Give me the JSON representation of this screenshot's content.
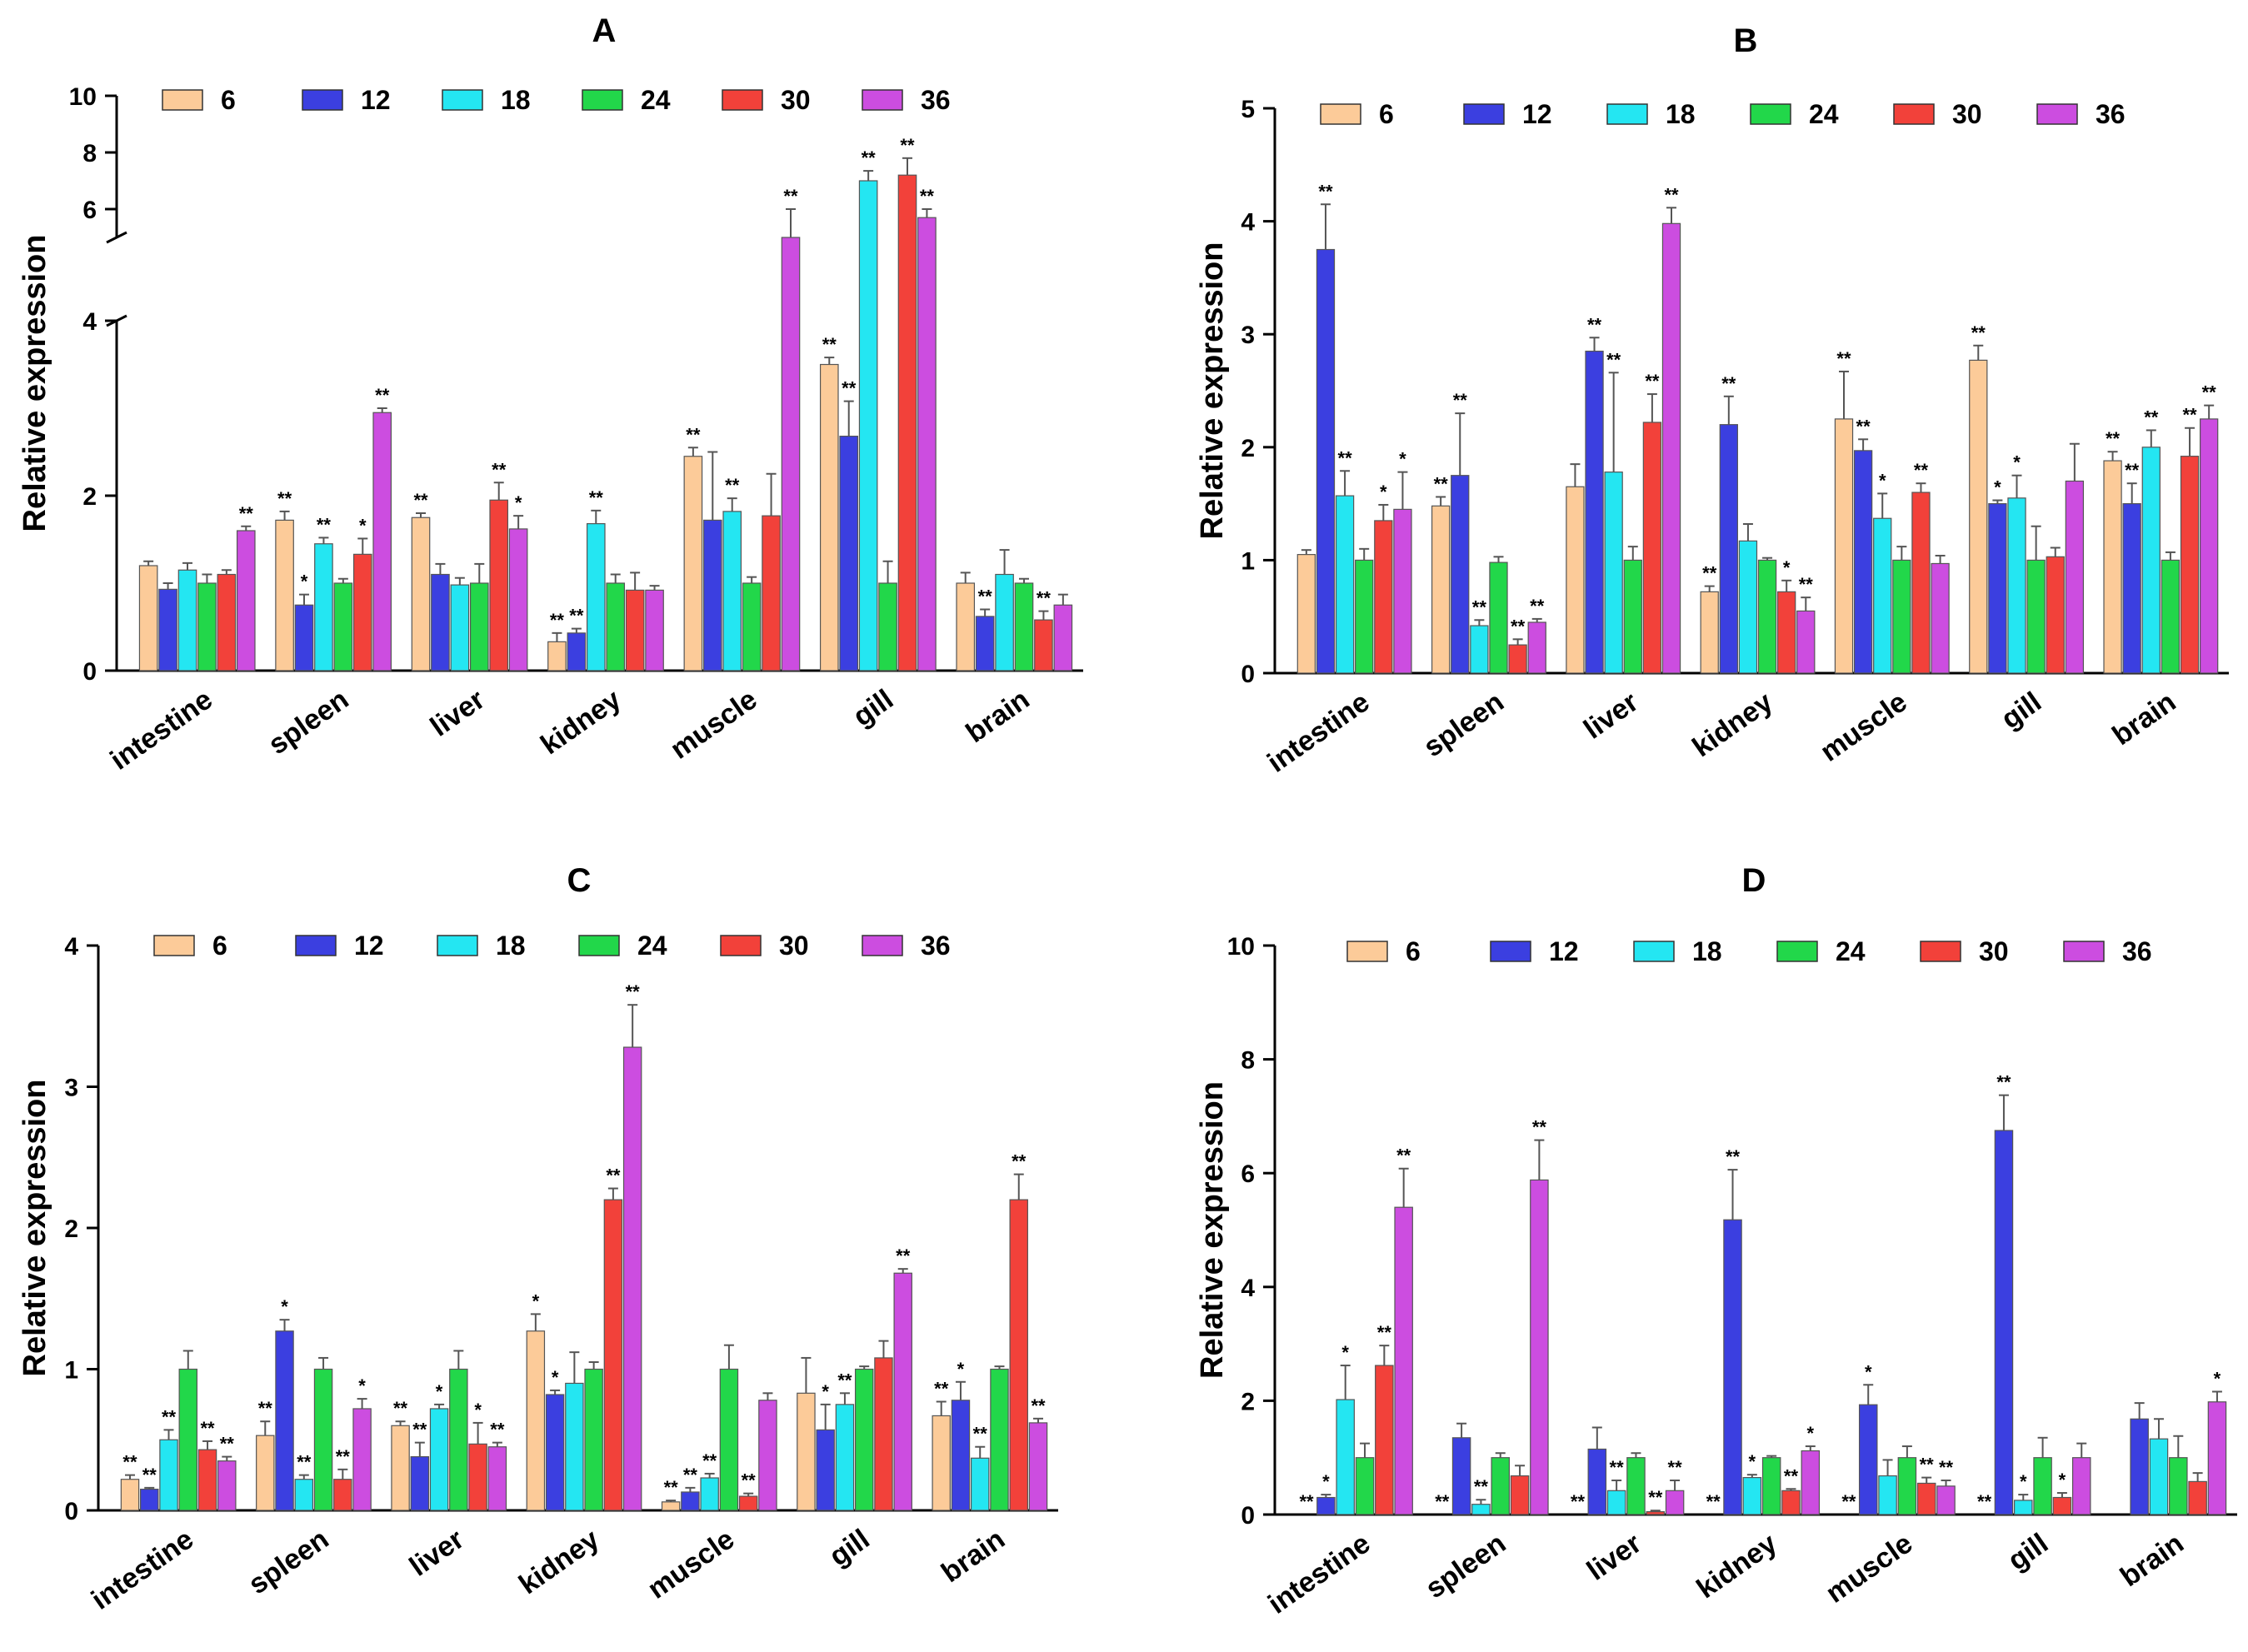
{
  "chart_data": [
    {
      "type": "bar",
      "title": "A",
      "xlabel": "",
      "ylabel": "Relative expression",
      "ylim": [
        0,
        10
      ],
      "axis_break": {
        "lower_max": 4,
        "upper_min": 5,
        "upper_max": 10
      },
      "yticks": [
        0,
        2,
        4,
        6,
        8,
        10
      ],
      "categories": [
        "intestine",
        "spleen",
        "liver",
        "kidney",
        "muscle",
        "gill",
        "brain"
      ],
      "legend_position": "top",
      "series": [
        {
          "name": "6",
          "color": "#FCCB99",
          "values": [
            1.2,
            1.72,
            1.75,
            0.33,
            2.45,
            3.5,
            1.0
          ],
          "errors": [
            0.05,
            0.1,
            0.05,
            0.1,
            0.1,
            0.08,
            0.12
          ],
          "sig": [
            "",
            "**",
            "**",
            "**",
            "**",
            "**",
            ""
          ]
        },
        {
          "name": "12",
          "color": "#3B3FE0",
          "values": [
            0.93,
            0.75,
            1.1,
            0.43,
            1.72,
            2.68,
            0.62
          ],
          "errors": [
            0.07,
            0.12,
            0.12,
            0.05,
            0.78,
            0.4,
            0.08
          ],
          "sig": [
            "",
            "*",
            "",
            "**",
            "",
            "**",
            "**"
          ]
        },
        {
          "name": "18",
          "color": "#24E6F2",
          "values": [
            1.15,
            1.45,
            0.98,
            1.68,
            1.82,
            7.0,
            1.1
          ],
          "errors": [
            0.08,
            0.07,
            0.08,
            0.15,
            0.15,
            0.35,
            0.28
          ],
          "sig": [
            "",
            "**",
            "",
            "**",
            "**",
            "**",
            ""
          ]
        },
        {
          "name": "24",
          "color": "#22D74A",
          "values": [
            1.0,
            1.0,
            1.0,
            1.0,
            1.0,
            1.0,
            1.0
          ],
          "errors": [
            0.1,
            0.05,
            0.22,
            0.1,
            0.07,
            0.25,
            0.05
          ],
          "sig": [
            "",
            "",
            "",
            "",
            "",
            "",
            ""
          ]
        },
        {
          "name": "30",
          "color": "#F2413A",
          "values": [
            1.1,
            1.33,
            1.95,
            0.92,
            1.77,
            7.2,
            0.58
          ],
          "errors": [
            0.05,
            0.18,
            0.2,
            0.2,
            0.48,
            0.6,
            0.1
          ],
          "sig": [
            "",
            "*",
            "**",
            "",
            "",
            "**",
            "**"
          ]
        },
        {
          "name": "36",
          "color": "#CC4DE0",
          "values": [
            1.6,
            2.95,
            1.62,
            0.92,
            5.0,
            5.7,
            0.75
          ],
          "errors": [
            0.05,
            0.05,
            0.15,
            0.05,
            1.0,
            0.3,
            0.12
          ],
          "sig": [
            "**",
            "**",
            "*",
            "",
            "**",
            "**",
            ""
          ]
        }
      ]
    },
    {
      "type": "bar",
      "title": "B",
      "xlabel": "",
      "ylabel": "Relative expression",
      "ylim": [
        0,
        5
      ],
      "yticks": [
        0,
        1,
        2,
        3,
        4,
        5
      ],
      "categories": [
        "intestine",
        "spleen",
        "liver",
        "kidney",
        "muscle",
        "gill",
        "brain"
      ],
      "legend_position": "top",
      "series": [
        {
          "name": "6",
          "color": "#FCCB99",
          "values": [
            1.05,
            1.48,
            1.65,
            0.72,
            2.25,
            2.77,
            1.88
          ],
          "errors": [
            0.04,
            0.08,
            0.2,
            0.05,
            0.42,
            0.13,
            0.08
          ],
          "sig": [
            "",
            "**",
            "",
            "**",
            "**",
            "**",
            "**"
          ]
        },
        {
          "name": "12",
          "color": "#3B3FE0",
          "values": [
            3.75,
            1.75,
            2.85,
            2.2,
            1.97,
            1.5,
            1.5
          ],
          "errors": [
            0.4,
            0.55,
            0.12,
            0.25,
            0.1,
            0.03,
            0.18
          ],
          "sig": [
            "**",
            "**",
            "**",
            "**",
            "**",
            "*",
            "**"
          ]
        },
        {
          "name": "18",
          "color": "#24E6F2",
          "values": [
            1.57,
            0.42,
            1.78,
            1.17,
            1.37,
            1.55,
            2.0
          ],
          "errors": [
            0.22,
            0.05,
            0.88,
            0.15,
            0.22,
            0.2,
            0.15
          ],
          "sig": [
            "**",
            "**",
            "**",
            "",
            "*",
            "*",
            "**"
          ]
        },
        {
          "name": "24",
          "color": "#22D74A",
          "values": [
            1.0,
            0.98,
            1.0,
            1.0,
            1.0,
            1.0,
            1.0
          ],
          "errors": [
            0.1,
            0.05,
            0.12,
            0.02,
            0.12,
            0.3,
            0.07
          ],
          "sig": [
            "",
            "",
            "",
            "",
            "",
            "",
            ""
          ]
        },
        {
          "name": "30",
          "color": "#F2413A",
          "values": [
            1.35,
            0.25,
            2.22,
            0.72,
            1.6,
            1.03,
            1.92
          ],
          "errors": [
            0.14,
            0.05,
            0.25,
            0.1,
            0.08,
            0.08,
            0.25
          ],
          "sig": [
            "*",
            "**",
            "**",
            "*",
            "**",
            "",
            "**"
          ]
        },
        {
          "name": "36",
          "color": "#CC4DE0",
          "values": [
            1.45,
            0.45,
            3.98,
            0.55,
            0.97,
            1.7,
            2.25
          ],
          "errors": [
            0.33,
            0.03,
            0.14,
            0.12,
            0.07,
            0.33,
            0.12
          ],
          "sig": [
            "*",
            "**",
            "**",
            "**",
            "",
            "",
            "**"
          ]
        }
      ]
    },
    {
      "type": "bar",
      "title": "C",
      "xlabel": "",
      "ylabel": "Relative expression",
      "ylim": [
        0,
        4
      ],
      "yticks": [
        0,
        1,
        2,
        3,
        4
      ],
      "categories": [
        "intestine",
        "spleen",
        "liver",
        "kidney",
        "muscle",
        "gill",
        "brain"
      ],
      "legend_position": "top",
      "series": [
        {
          "name": "6",
          "color": "#FCCB99",
          "values": [
            0.22,
            0.53,
            0.6,
            1.27,
            0.06,
            0.83,
            0.67
          ],
          "errors": [
            0.03,
            0.1,
            0.03,
            0.12,
            0.01,
            0.25,
            0.1
          ],
          "sig": [
            "**",
            "**",
            "**",
            "*",
            "**",
            "",
            "**"
          ]
        },
        {
          "name": "12",
          "color": "#3B3FE0",
          "values": [
            0.15,
            1.27,
            0.38,
            0.82,
            0.13,
            0.57,
            0.78
          ],
          "errors": [
            0.01,
            0.08,
            0.1,
            0.03,
            0.03,
            0.18,
            0.13
          ],
          "sig": [
            "**",
            "*",
            "**",
            "*",
            "**",
            "*",
            "*"
          ]
        },
        {
          "name": "18",
          "color": "#24E6F2",
          "values": [
            0.5,
            0.22,
            0.72,
            0.9,
            0.23,
            0.75,
            0.37
          ],
          "errors": [
            0.07,
            0.03,
            0.03,
            0.22,
            0.03,
            0.08,
            0.08
          ],
          "sig": [
            "**",
            "**",
            "*",
            "",
            "**",
            "**",
            "**"
          ]
        },
        {
          "name": "24",
          "color": "#22D74A",
          "values": [
            1.0,
            1.0,
            1.0,
            1.0,
            1.0,
            1.0,
            1.0
          ],
          "errors": [
            0.13,
            0.08,
            0.13,
            0.05,
            0.17,
            0.02,
            0.02
          ],
          "sig": [
            "",
            "",
            "",
            "",
            "",
            "",
            ""
          ]
        },
        {
          "name": "30",
          "color": "#F2413A",
          "values": [
            0.43,
            0.22,
            0.47,
            2.2,
            0.1,
            1.08,
            2.2
          ],
          "errors": [
            0.06,
            0.07,
            0.15,
            0.08,
            0.02,
            0.12,
            0.18
          ],
          "sig": [
            "**",
            "**",
            "*",
            "**",
            "**",
            "",
            "**"
          ]
        },
        {
          "name": "36",
          "color": "#CC4DE0",
          "values": [
            0.35,
            0.72,
            0.45,
            3.28,
            0.78,
            1.68,
            0.62
          ],
          "errors": [
            0.03,
            0.07,
            0.03,
            0.3,
            0.05,
            0.03,
            0.03
          ],
          "sig": [
            "**",
            "*",
            "**",
            "**",
            "",
            "**",
            "**"
          ]
        }
      ]
    },
    {
      "type": "bar",
      "title": "D",
      "xlabel": "",
      "ylabel": "Relative expression",
      "ylim": [
        0,
        10
      ],
      "yticks": [
        0,
        2,
        4,
        6,
        8,
        10
      ],
      "categories": [
        "intestine",
        "spleen",
        "liver",
        "kidney",
        "muscle",
        "gill",
        "brain"
      ],
      "legend_position": "top",
      "series": [
        {
          "name": "6",
          "color": "#FCCB99",
          "values": [
            0.0,
            0.0,
            0.0,
            0.0,
            0.0,
            0.0,
            0.0
          ],
          "errors": [
            0,
            0,
            0,
            0,
            0,
            0,
            0
          ],
          "sig": [
            "**",
            "**",
            "**",
            "**",
            "**",
            "**",
            ""
          ]
        },
        {
          "name": "12",
          "color": "#3B3FE0",
          "values": [
            0.3,
            1.35,
            1.15,
            5.18,
            1.93,
            6.75,
            1.68
          ],
          "errors": [
            0.05,
            0.25,
            0.38,
            0.88,
            0.35,
            0.62,
            0.28
          ],
          "sig": [
            "*",
            "",
            "",
            "**",
            "*",
            "**",
            ""
          ]
        },
        {
          "name": "18",
          "color": "#24E6F2",
          "values": [
            2.02,
            0.18,
            0.42,
            0.65,
            0.68,
            0.25,
            1.33
          ],
          "errors": [
            0.6,
            0.08,
            0.18,
            0.05,
            0.28,
            0.1,
            0.35
          ],
          "sig": [
            "*",
            "**",
            "**",
            "*",
            "",
            "*",
            ""
          ]
        },
        {
          "name": "24",
          "color": "#22D74A",
          "values": [
            1.0,
            1.0,
            1.0,
            1.0,
            1.0,
            1.0,
            1.0
          ],
          "errors": [
            0.25,
            0.08,
            0.08,
            0.03,
            0.2,
            0.35,
            0.38
          ],
          "sig": [
            "",
            "",
            "",
            "",
            "",
            "",
            ""
          ]
        },
        {
          "name": "30",
          "color": "#F2413A",
          "values": [
            2.62,
            0.68,
            0.05,
            0.42,
            0.55,
            0.3,
            0.58
          ],
          "errors": [
            0.35,
            0.18,
            0.02,
            0.03,
            0.1,
            0.08,
            0.15
          ],
          "sig": [
            "**",
            "",
            "**",
            "**",
            "**",
            "*",
            ""
          ]
        },
        {
          "name": "36",
          "color": "#CC4DE0",
          "values": [
            5.4,
            5.88,
            0.42,
            1.12,
            0.5,
            1.0,
            1.98
          ],
          "errors": [
            0.68,
            0.7,
            0.18,
            0.08,
            0.1,
            0.25,
            0.18
          ],
          "sig": [
            "**",
            "**",
            "**",
            "*",
            "**",
            "",
            "*"
          ]
        }
      ]
    }
  ]
}
